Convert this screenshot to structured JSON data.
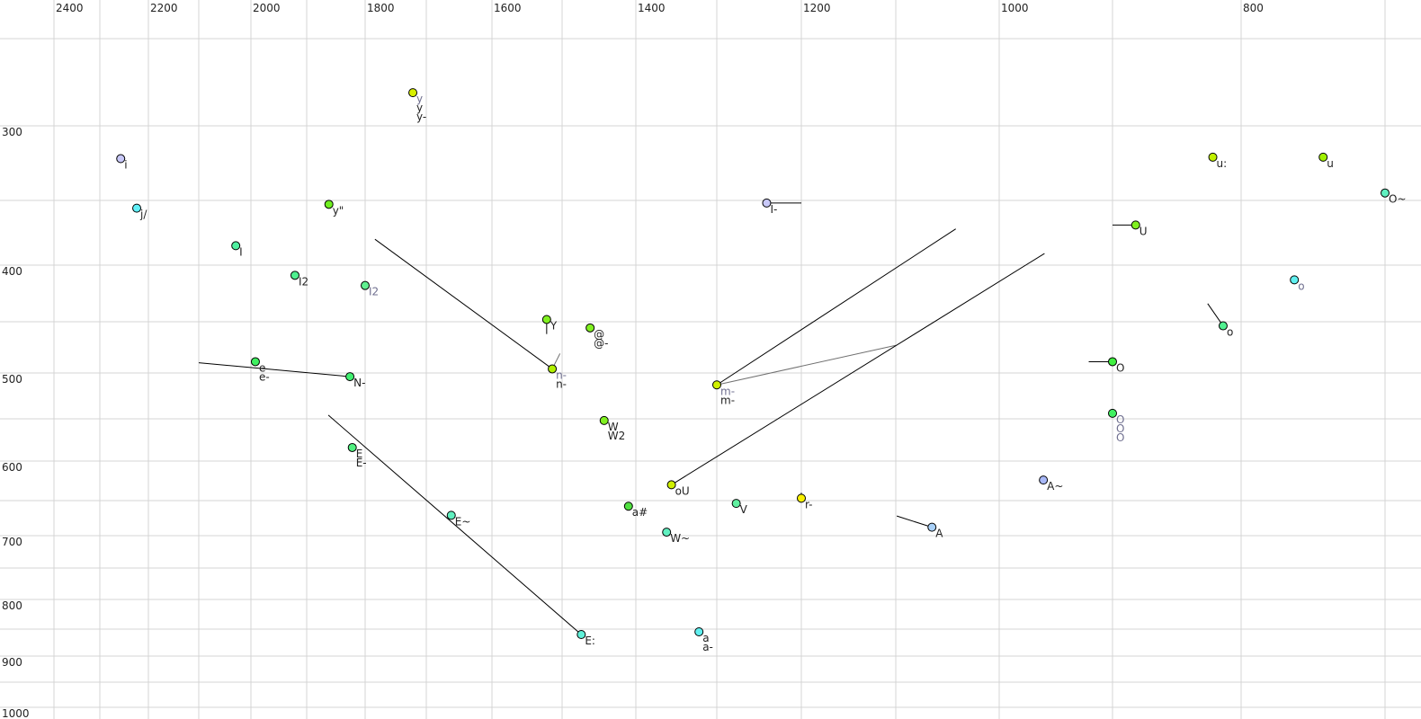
{
  "chart_data": {
    "type": "scatter",
    "x_axis": {
      "position": "top",
      "reversed": true,
      "scale": "nonlinear",
      "range": [
        2460,
        660
      ],
      "gridlines": [
        2400,
        2300,
        2200,
        2100,
        2000,
        1900,
        1800,
        1700,
        1600,
        1500,
        1400,
        1300,
        1200,
        1100,
        1000,
        900,
        800,
        700
      ],
      "tick_labels": [
        "2400",
        "2200",
        "2000",
        "1800",
        "1600",
        "1400",
        "1200",
        "1000",
        "800"
      ]
    },
    "y_axis": {
      "position": "left",
      "reversed": true,
      "scale": "nonlinear",
      "range": [
        200,
        1010
      ],
      "gridlines": [
        250,
        300,
        350,
        400,
        450,
        500,
        550,
        600,
        650,
        700,
        750,
        800,
        850,
        900,
        950,
        1000
      ],
      "tick_labels": [
        "300",
        "400",
        "500",
        "600",
        "700",
        "800",
        "900",
        "1000"
      ]
    },
    "grid": true,
    "label_colors": {
      "dark": "#222222",
      "grey": "#707090"
    },
    "points": [
      {
        "f2": 2257,
        "f1": 322,
        "color": "#c8c8f8",
        "labels": [
          {
            "text": "i",
            "tone": "dark"
          }
        ]
      },
      {
        "f2": 2224,
        "f1": 356,
        "color": "#60f0f8",
        "labels": [
          {
            "text": "j/",
            "tone": "dark"
          }
        ]
      },
      {
        "f2": 2029,
        "f1": 385,
        "color": "#50f0a0",
        "labels": [
          {
            "text": "I",
            "tone": "dark"
          }
        ]
      },
      {
        "f2": 1921,
        "f1": 409,
        "color": "#50f090",
        "labels": [
          {
            "text": "I2",
            "tone": "dark"
          }
        ]
      },
      {
        "f2": 1862,
        "f1": 353,
        "color": "#70f020",
        "labels": [
          {
            "text": "y\"",
            "tone": "dark"
          }
        ]
      },
      {
        "f2": 1800,
        "f1": 418,
        "color": "#60f090",
        "labels": [
          {
            "text": "I2",
            "tone": "grey"
          }
        ]
      },
      {
        "f2": 1722,
        "f1": 281,
        "color": "#d8f000",
        "labels": [
          {
            "text": "y",
            "tone": "grey"
          },
          {
            "text": "y",
            "tone": "dark"
          },
          {
            "text": "y-",
            "tone": "dark"
          }
        ]
      },
      {
        "f2": 1992,
        "f1": 489,
        "color": "#40f060",
        "labels": [
          {
            "text": "e",
            "tone": "dark"
          },
          {
            "text": "e-",
            "tone": "dark"
          }
        ]
      },
      {
        "f2": 1826,
        "f1": 504,
        "color": "#40f070",
        "labels": [
          {
            "text": "N-",
            "tone": "dark"
          }
        ]
      },
      {
        "f2": 1522,
        "f1": 448,
        "color": "#80f020",
        "labels": [
          {
            "text": "Y",
            "tone": "dark"
          }
        ]
      },
      {
        "f2": 1462,
        "f1": 456,
        "color": "#80f020",
        "labels": [
          {
            "text": "@",
            "tone": "dark"
          },
          {
            "text": "@-",
            "tone": "dark"
          }
        ]
      },
      {
        "f2": 1514,
        "f1": 496,
        "color": "#b0f000",
        "labels": [
          {
            "text": "n-",
            "tone": "grey"
          },
          {
            "text": "n-",
            "tone": "dark"
          }
        ]
      },
      {
        "f2": 1443,
        "f1": 552,
        "color": "#80f020",
        "labels": [
          {
            "text": "W",
            "tone": "dark"
          },
          {
            "text": "W2",
            "tone": "dark"
          }
        ]
      },
      {
        "f2": 1822,
        "f1": 584,
        "color": "#50f080",
        "labels": [
          {
            "text": "E",
            "tone": "dark"
          },
          {
            "text": "E-",
            "tone": "dark"
          }
        ]
      },
      {
        "f2": 1662,
        "f1": 671,
        "color": "#60f0c0",
        "labels": [
          {
            "text": "E~",
            "tone": "dark"
          }
        ]
      },
      {
        "f2": 1474,
        "f1": 860,
        "color": "#60f0d8",
        "labels": [
          {
            "text": "E:",
            "tone": "dark"
          }
        ]
      },
      {
        "f2": 1356,
        "f1": 630,
        "color": "#d0f000",
        "labels": [
          {
            "text": "oU",
            "tone": "dark"
          }
        ]
      },
      {
        "f2": 1410,
        "f1": 658,
        "color": "#50e040",
        "labels": [
          {
            "text": "a#",
            "tone": "dark"
          }
        ]
      },
      {
        "f2": 1362,
        "f1": 695,
        "color": "#60f0c0",
        "labels": [
          {
            "text": "W~",
            "tone": "dark"
          }
        ]
      },
      {
        "f2": 1277,
        "f1": 654,
        "color": "#60f0a0",
        "labels": [
          {
            "text": "V",
            "tone": "dark"
          }
        ]
      },
      {
        "f2": 1200,
        "f1": 647,
        "color": "#f8f000",
        "labels": [
          {
            "text": "r-",
            "tone": "dark"
          }
        ]
      },
      {
        "f2": 1322,
        "f1": 855,
        "color": "#60f0f0",
        "labels": [
          {
            "text": "a",
            "tone": "dark"
          },
          {
            "text": "a-",
            "tone": "dark"
          }
        ]
      },
      {
        "f2": 1241,
        "f1": 352,
        "color": "#c8c8f8",
        "labels": [
          {
            "text": "I-",
            "tone": "dark"
          }
        ]
      },
      {
        "f2": 1300,
        "f1": 513,
        "color": "#d0f000",
        "labels": [
          {
            "text": "m-",
            "tone": "grey"
          },
          {
            "text": "m-",
            "tone": "dark"
          }
        ]
      },
      {
        "f2": 822,
        "f1": 321,
        "color": "#c0f000",
        "labels": [
          {
            "text": "u:",
            "tone": "dark"
          }
        ]
      },
      {
        "f2": 743,
        "f1": 321,
        "color": "#a0f000",
        "labels": [
          {
            "text": "u",
            "tone": "dark"
          }
        ]
      },
      {
        "f2": 700,
        "f1": 345,
        "color": "#60f0c0",
        "labels": [
          {
            "text": "O~",
            "tone": "dark"
          }
        ]
      },
      {
        "f2": 882,
        "f1": 369,
        "color": "#80f020",
        "labels": [
          {
            "text": "U",
            "tone": "dark"
          }
        ]
      },
      {
        "f2": 763,
        "f1": 413,
        "color": "#60f0f0",
        "labels": [
          {
            "text": "o",
            "tone": "grey"
          }
        ]
      },
      {
        "f2": 814,
        "f1": 454,
        "color": "#50f090",
        "labels": [
          {
            "text": "o",
            "tone": "dark"
          }
        ]
      },
      {
        "f2": 900,
        "f1": 489,
        "color": "#40f040",
        "labels": [
          {
            "text": "O",
            "tone": "dark"
          }
        ]
      },
      {
        "f2": 900,
        "f1": 544,
        "color": "#40f060",
        "labels": [
          {
            "text": "O",
            "tone": "grey"
          },
          {
            "text": "O",
            "tone": "grey"
          },
          {
            "text": "O",
            "tone": "grey"
          }
        ]
      },
      {
        "f2": 961,
        "f1": 624,
        "color": "#a8b8f8",
        "labels": [
          {
            "text": "A~",
            "tone": "dark"
          }
        ]
      },
      {
        "f2": 1065,
        "f1": 688,
        "color": "#a8d0f8",
        "labels": [
          {
            "text": "A",
            "tone": "dark"
          }
        ]
      }
    ],
    "trajectories": [
      {
        "from": [
          2100,
          490
        ],
        "to": [
          1826,
          504
        ],
        "tone": "dark"
      },
      {
        "from": [
          1784,
          380
        ],
        "to": [
          1514,
          496
        ],
        "tone": "dark"
      },
      {
        "from": [
          1503,
          481
        ],
        "to": [
          1514,
          496
        ],
        "tone": "grey"
      },
      {
        "from": [
          1863,
          546
        ],
        "to": [
          1474,
          860
        ],
        "tone": "dark"
      },
      {
        "from": [
          1042,
          372
        ],
        "to": [
          1300,
          513
        ],
        "tone": "dark"
      },
      {
        "from": [
          1100,
          473
        ],
        "to": [
          1300,
          513
        ],
        "tone": "grey"
      },
      {
        "from": [
          960,
          391
        ],
        "to": [
          1356,
          630
        ],
        "tone": "dark"
      },
      {
        "from": [
          1200,
          352
        ],
        "to": [
          1241,
          352
        ],
        "tone": "dark"
      },
      {
        "from": [
          900,
          369
        ],
        "to": [
          882,
          369
        ],
        "tone": "dark"
      },
      {
        "from": [
          921,
          489
        ],
        "to": [
          900,
          489
        ],
        "tone": "dark"
      },
      {
        "from": [
          826,
          434
        ],
        "to": [
          814,
          454
        ],
        "tone": "dark"
      },
      {
        "from": [
          1099,
          672
        ],
        "to": [
          1065,
          688
        ],
        "tone": "dark"
      },
      {
        "from": [
          1522,
          462
        ],
        "to": [
          1522,
          448
        ],
        "tone": "dark"
      },
      {
        "from": [
          1200,
          640
        ],
        "to": [
          1200,
          647
        ],
        "tone": "dark"
      }
    ]
  }
}
